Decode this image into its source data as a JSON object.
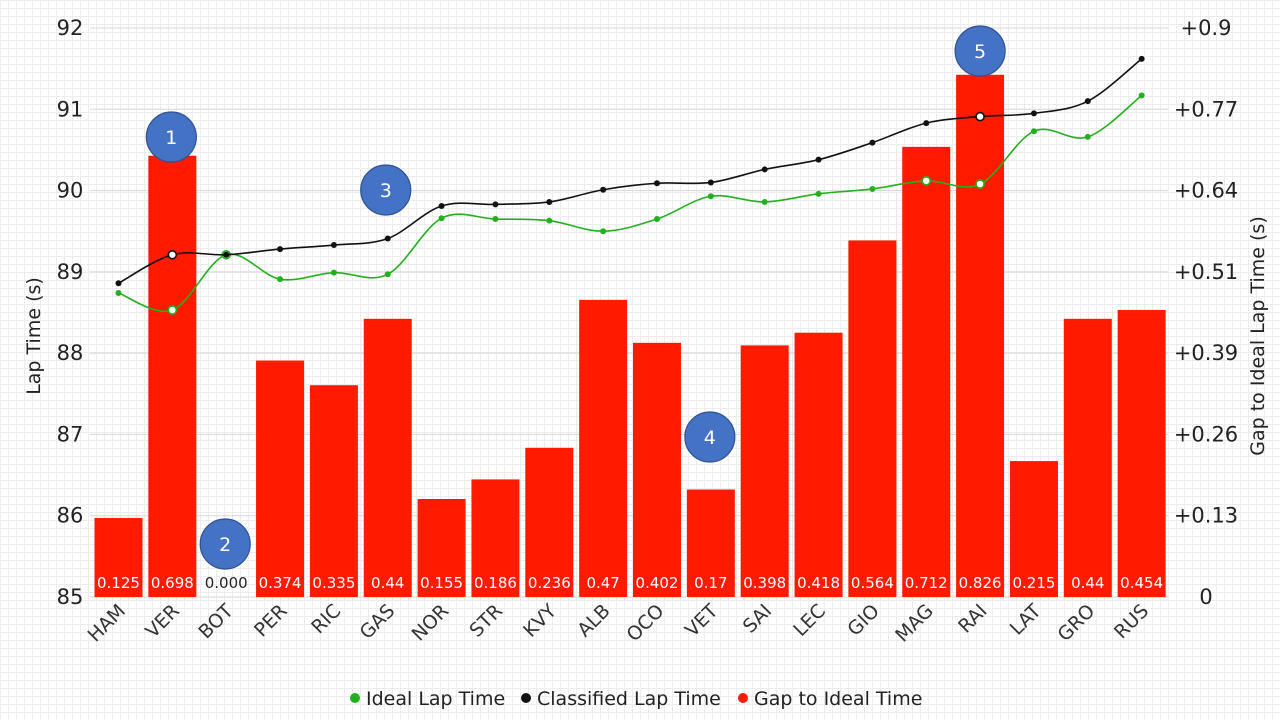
{
  "chart_data": {
    "type": "bar",
    "categories": [
      "HAM",
      "VER",
      "BOT",
      "PER",
      "RIC",
      "GAS",
      "NOR",
      "STR",
      "KVY",
      "ALB",
      "OCO",
      "VET",
      "SAI",
      "LEC",
      "GIO",
      "MAG",
      "RAI",
      "LAT",
      "GRO",
      "RUS"
    ],
    "series": [
      {
        "name": "Gap to Ideal Time",
        "type": "bar",
        "axis": "right",
        "color": "#ff1a00",
        "values": [
          0.125,
          0.698,
          0.0,
          0.374,
          0.335,
          0.44,
          0.155,
          0.186,
          0.236,
          0.47,
          0.402,
          0.17,
          0.398,
          0.418,
          0.564,
          0.712,
          0.826,
          0.215,
          0.44,
          0.454
        ],
        "labels": [
          "0.125",
          "0.698",
          "0.000",
          "0.374",
          "0.335",
          "0.44",
          "0.155",
          "0.186",
          "0.236",
          "0.47",
          "0.402",
          "0.17",
          "0.398",
          "0.418",
          "0.564",
          "0.712",
          "0.826",
          "0.215",
          "0.44",
          "0.454"
        ]
      },
      {
        "name": "Ideal Lap Time",
        "type": "line",
        "axis": "left",
        "color": "#22b01e",
        "values": [
          88.74,
          88.53,
          89.21,
          88.91,
          88.99,
          88.97,
          89.66,
          89.65,
          89.63,
          89.5,
          89.65,
          89.93,
          89.86,
          89.96,
          90.02,
          90.12,
          90.08,
          90.73,
          90.66,
          91.17
        ]
      },
      {
        "name": "Classified Lap Time",
        "type": "line",
        "axis": "left",
        "color": "#111111",
        "values": [
          88.86,
          89.21,
          89.21,
          89.28,
          89.33,
          89.41,
          89.81,
          89.83,
          89.86,
          90.01,
          90.09,
          90.1,
          90.26,
          90.38,
          90.59,
          90.83,
          90.91,
          90.95,
          91.1,
          91.62
        ]
      }
    ],
    "y_left": {
      "label": "Lap Time (s)",
      "range": [
        85,
        92
      ],
      "ticks": [
        "85",
        "86",
        "87",
        "88",
        "89",
        "90",
        "91",
        "92"
      ]
    },
    "y_right": {
      "label": "Gap to Ideal Lap Time (s)",
      "range": [
        0,
        0.9
      ],
      "ticks": [
        "0",
        "+0.13",
        "+0.26",
        "+0.39",
        "+0.51",
        "+0.64",
        "+0.77",
        "+0.9"
      ]
    },
    "legend": {
      "position": "bottom"
    },
    "annotations": [
      {
        "text": "1",
        "category": "VER"
      },
      {
        "text": "2",
        "category": "BOT"
      },
      {
        "text": "3",
        "category": "GAS"
      },
      {
        "text": "4",
        "category": "VET"
      },
      {
        "text": "5",
        "category": "RAI"
      }
    ],
    "highlighted_points": [
      "VER",
      "BOT",
      "MAG",
      "RAI"
    ]
  }
}
